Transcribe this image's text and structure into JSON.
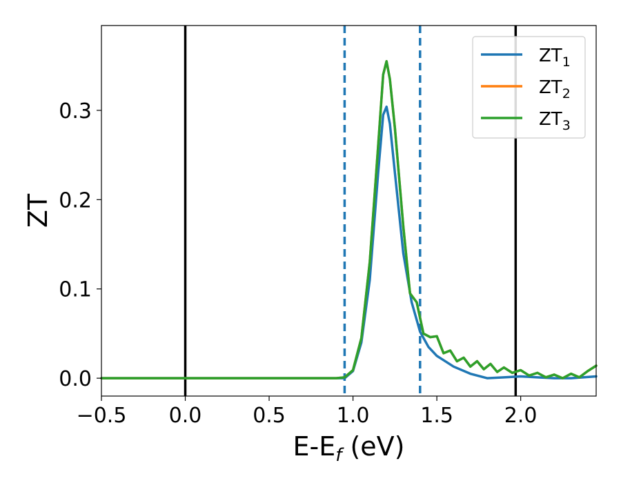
{
  "chart_data": {
    "type": "line",
    "title": "",
    "xlabel": "E-E",
    "xlabel_subscript": "f",
    "xlabel_unit": "(eV)",
    "ylabel": "ZT",
    "xlim": [
      -0.5,
      2.45
    ],
    "ylim": [
      -0.02,
      0.395
    ],
    "xticks": [
      -0.5,
      0.0,
      0.5,
      1.0,
      1.5,
      2.0
    ],
    "xtick_labels": [
      "−0.5",
      "0.0",
      "0.5",
      "1.0",
      "1.5",
      "2.0"
    ],
    "yticks": [
      0.0,
      0.1,
      0.2,
      0.3
    ],
    "ytick_labels": [
      "0.0",
      "0.1",
      "0.2",
      "0.3"
    ],
    "grid": false,
    "legend_position": "top-right",
    "vertical_lines": [
      {
        "x": 0.0,
        "style": "solid",
        "color": "#000000"
      },
      {
        "x": 0.95,
        "style": "dashed",
        "color": "#1f77b4"
      },
      {
        "x": 1.4,
        "style": "dashed",
        "color": "#1f77b4"
      },
      {
        "x": 1.97,
        "style": "solid",
        "color": "#000000"
      }
    ],
    "series": [
      {
        "name": "ZT",
        "subscript": "1",
        "color": "#1f77b4",
        "points": [
          [
            -0.5,
            0.0
          ],
          [
            0.9,
            0.0
          ],
          [
            0.95,
            0.0
          ],
          [
            1.0,
            0.008
          ],
          [
            1.05,
            0.04
          ],
          [
            1.1,
            0.11
          ],
          [
            1.15,
            0.23
          ],
          [
            1.18,
            0.295
          ],
          [
            1.2,
            0.304
          ],
          [
            1.22,
            0.285
          ],
          [
            1.25,
            0.23
          ],
          [
            1.3,
            0.14
          ],
          [
            1.35,
            0.085
          ],
          [
            1.4,
            0.052
          ],
          [
            1.45,
            0.035
          ],
          [
            1.5,
            0.025
          ],
          [
            1.6,
            0.013
          ],
          [
            1.7,
            0.005
          ],
          [
            1.8,
            0.0
          ],
          [
            1.9,
            0.001
          ],
          [
            2.0,
            0.002
          ],
          [
            2.1,
            0.001
          ],
          [
            2.2,
            0.0
          ],
          [
            2.3,
            0.0
          ],
          [
            2.45,
            0.002
          ]
        ]
      },
      {
        "name": "ZT",
        "subscript": "2",
        "color": "#ff7f0e",
        "points": [
          [
            -0.5,
            0.0
          ],
          [
            0.9,
            0.0
          ],
          [
            0.95,
            0.001
          ],
          [
            1.0,
            0.009
          ],
          [
            1.05,
            0.045
          ],
          [
            1.1,
            0.13
          ],
          [
            1.15,
            0.26
          ],
          [
            1.18,
            0.34
          ],
          [
            1.2,
            0.355
          ],
          [
            1.22,
            0.335
          ],
          [
            1.25,
            0.28
          ],
          [
            1.3,
            0.17
          ],
          [
            1.34,
            0.095
          ],
          [
            1.38,
            0.085
          ],
          [
            1.42,
            0.05
          ],
          [
            1.46,
            0.046
          ],
          [
            1.5,
            0.047
          ],
          [
            1.54,
            0.028
          ],
          [
            1.58,
            0.031
          ],
          [
            1.62,
            0.019
          ],
          [
            1.66,
            0.023
          ],
          [
            1.7,
            0.013
          ],
          [
            1.74,
            0.019
          ],
          [
            1.78,
            0.01
          ],
          [
            1.82,
            0.016
          ],
          [
            1.86,
            0.007
          ],
          [
            1.9,
            0.012
          ],
          [
            1.95,
            0.006
          ],
          [
            2.0,
            0.009
          ],
          [
            2.05,
            0.003
          ],
          [
            2.1,
            0.006
          ],
          [
            2.15,
            0.001
          ],
          [
            2.2,
            0.004
          ],
          [
            2.25,
            0.0
          ],
          [
            2.3,
            0.005
          ],
          [
            2.35,
            0.001
          ],
          [
            2.4,
            0.008
          ],
          [
            2.45,
            0.014
          ]
        ]
      },
      {
        "name": "ZT",
        "subscript": "3",
        "color": "#2ca02c",
        "points": [
          [
            -0.5,
            0.0
          ],
          [
            0.9,
            0.0
          ],
          [
            0.95,
            0.001
          ],
          [
            1.0,
            0.009
          ],
          [
            1.05,
            0.045
          ],
          [
            1.1,
            0.13
          ],
          [
            1.15,
            0.26
          ],
          [
            1.18,
            0.34
          ],
          [
            1.2,
            0.355
          ],
          [
            1.22,
            0.335
          ],
          [
            1.25,
            0.28
          ],
          [
            1.3,
            0.17
          ],
          [
            1.34,
            0.095
          ],
          [
            1.38,
            0.085
          ],
          [
            1.42,
            0.05
          ],
          [
            1.46,
            0.046
          ],
          [
            1.5,
            0.047
          ],
          [
            1.54,
            0.028
          ],
          [
            1.58,
            0.031
          ],
          [
            1.62,
            0.019
          ],
          [
            1.66,
            0.023
          ],
          [
            1.7,
            0.013
          ],
          [
            1.74,
            0.019
          ],
          [
            1.78,
            0.01
          ],
          [
            1.82,
            0.016
          ],
          [
            1.86,
            0.007
          ],
          [
            1.9,
            0.012
          ],
          [
            1.95,
            0.006
          ],
          [
            2.0,
            0.009
          ],
          [
            2.05,
            0.003
          ],
          [
            2.1,
            0.006
          ],
          [
            2.15,
            0.001
          ],
          [
            2.2,
            0.004
          ],
          [
            2.25,
            0.0
          ],
          [
            2.3,
            0.005
          ],
          [
            2.35,
            0.001
          ],
          [
            2.4,
            0.008
          ],
          [
            2.45,
            0.014
          ]
        ]
      }
    ]
  }
}
